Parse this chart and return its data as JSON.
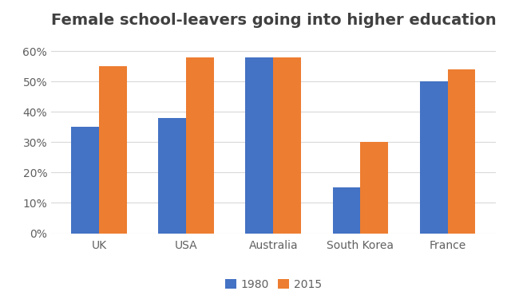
{
  "title": "Female school-leavers going into higher education",
  "categories": [
    "UK",
    "USA",
    "Australia",
    "South Korea",
    "France"
  ],
  "values_1980": [
    0.35,
    0.38,
    0.58,
    0.15,
    0.5
  ],
  "values_2015": [
    0.55,
    0.58,
    0.58,
    0.3,
    0.54
  ],
  "color_1980": "#4472C4",
  "color_2015": "#ED7D31",
  "legend_labels": [
    "1980",
    "2015"
  ],
  "ylim": [
    0,
    0.65
  ],
  "yticks": [
    0.0,
    0.1,
    0.2,
    0.3,
    0.4,
    0.5,
    0.6
  ],
  "bar_width": 0.32,
  "background_color": "#FFFFFF",
  "grid_color": "#D9D9D9",
  "title_fontsize": 14,
  "tick_fontsize": 10,
  "legend_fontsize": 10,
  "title_color": "#404040",
  "tick_color": "#606060"
}
